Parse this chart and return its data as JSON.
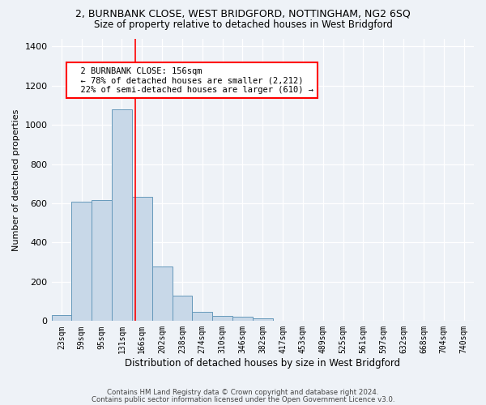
{
  "title": "2, BURNBANK CLOSE, WEST BRIDGFORD, NOTTINGHAM, NG2 6SQ",
  "subtitle": "Size of property relative to detached houses in West Bridgford",
  "xlabel": "Distribution of detached houses by size in West Bridgford",
  "ylabel": "Number of detached properties",
  "bar_color": "#c8d8e8",
  "bar_edge_color": "#6699bb",
  "categories": [
    "23sqm",
    "59sqm",
    "95sqm",
    "131sqm",
    "166sqm",
    "202sqm",
    "238sqm",
    "274sqm",
    "310sqm",
    "346sqm",
    "382sqm",
    "417sqm",
    "453sqm",
    "489sqm",
    "525sqm",
    "561sqm",
    "597sqm",
    "632sqm",
    "668sqm",
    "704sqm",
    "740sqm"
  ],
  "values": [
    30,
    610,
    615,
    1080,
    635,
    280,
    130,
    45,
    25,
    22,
    15,
    0,
    0,
    0,
    0,
    0,
    0,
    0,
    0,
    0,
    0
  ],
  "ylim": [
    0,
    1440
  ],
  "yticks": [
    0,
    200,
    400,
    600,
    800,
    1000,
    1200,
    1400
  ],
  "annotation_text": "  2 BURNBANK CLOSE: 156sqm\n  ← 78% of detached houses are smaller (2,212)\n  22% of semi-detached houses are larger (610) →",
  "vline_pos": 3.68,
  "footnote1": "Contains HM Land Registry data © Crown copyright and database right 2024.",
  "footnote2": "Contains public sector information licensed under the Open Government Licence v3.0.",
  "bg_color": "#eef2f7",
  "plot_bg_color": "#eef2f7",
  "grid_color": "#ffffff"
}
